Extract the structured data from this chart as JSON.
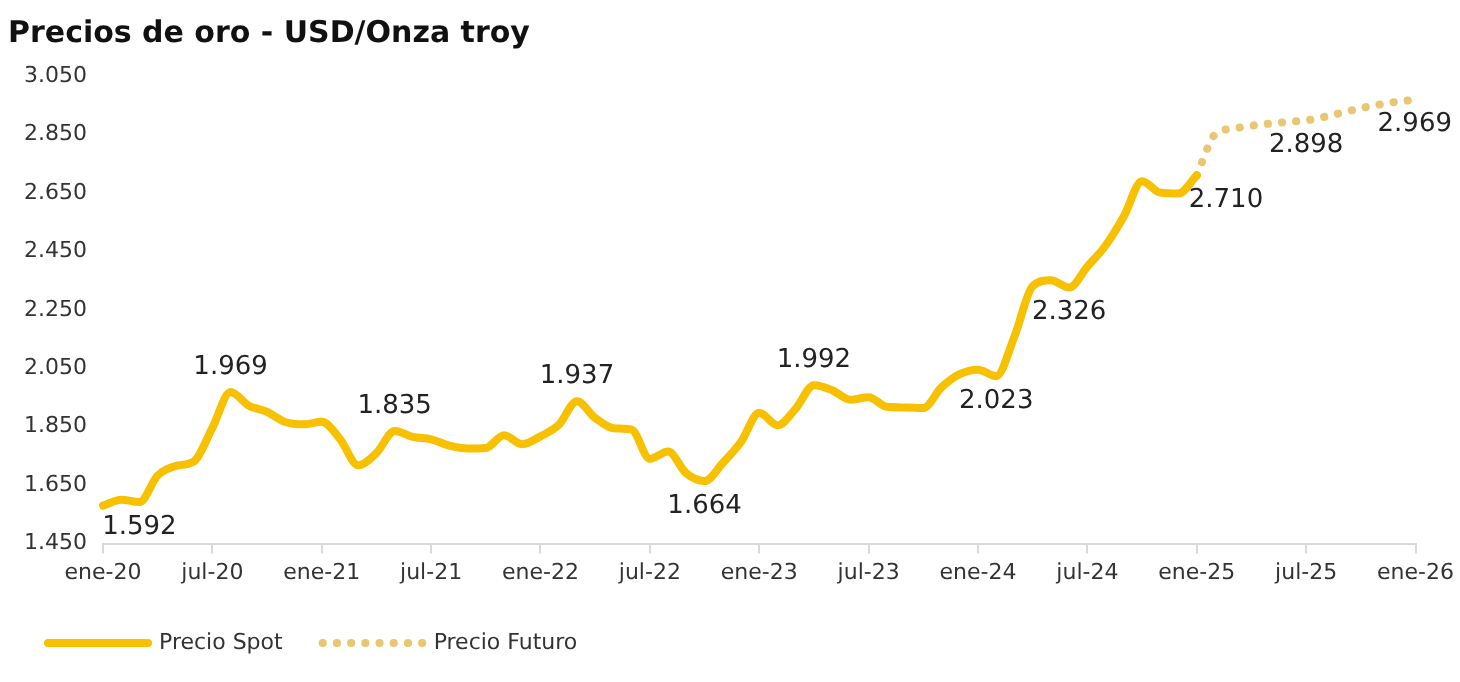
{
  "chart_data": {
    "type": "line",
    "title": "Precios de oro - USD/Onza troy",
    "categories": [
      "ene-20",
      null,
      null,
      null,
      null,
      null,
      "jul-20",
      null,
      null,
      null,
      null,
      null,
      "ene-21",
      null,
      null,
      null,
      null,
      null,
      "jul-21",
      null,
      null,
      null,
      null,
      null,
      "ene-22",
      null,
      null,
      null,
      null,
      null,
      "jul-22",
      null,
      null,
      null,
      null,
      null,
      "ene-23",
      null,
      null,
      null,
      null,
      null,
      "jul-23",
      null,
      null,
      null,
      null,
      null,
      "ene-24",
      null,
      null,
      null,
      null,
      null,
      "jul-24",
      null,
      null,
      null,
      null,
      null,
      "ene-25",
      null,
      null,
      null,
      null,
      null,
      "jul-25",
      null,
      null,
      null,
      null,
      null,
      "ene-26"
    ],
    "ylim": [
      1450,
      3050
    ],
    "yticks": [
      {
        "value": 1450,
        "label": "1.450"
      },
      {
        "value": 1650,
        "label": "1.650"
      },
      {
        "value": 1850,
        "label": "1.850"
      },
      {
        "value": 2050,
        "label": "2.050"
      },
      {
        "value": 2250,
        "label": "2.250"
      },
      {
        "value": 2450,
        "label": "2.450"
      },
      {
        "value": 2650,
        "label": "2.650"
      },
      {
        "value": 2850,
        "label": "2.850"
      },
      {
        "value": 3050,
        "label": "3.050"
      }
    ],
    "grid": false,
    "legend": "bottom",
    "marker": "none",
    "series": [
      {
        "name": "Precio Spot",
        "color": "#f7c000",
        "line_style": "solid",
        "values": [
          1580,
          1600,
          1592,
          1683,
          1716,
          1732,
          1846,
          1969,
          1922,
          1901,
          1866,
          1858,
          1867,
          1808,
          1718,
          1760,
          1835,
          1815,
          1807,
          1785,
          1775,
          1777,
          1821,
          1790,
          1817,
          1856,
          1937,
          1880,
          1845,
          1840,
          1740,
          1765,
          1690,
          1664,
          1726,
          1798,
          1898,
          1855,
          1912,
          1992,
          1975,
          1942,
          1951,
          1918,
          1916,
          1914,
          1985,
          2030,
          2045,
          2023,
          2159,
          2331,
          2351,
          2326,
          2398,
          2470,
          2570,
          2690,
          2651,
          2648,
          2710,
          null,
          null,
          null,
          null,
          null,
          null,
          null,
          null,
          null,
          null,
          null,
          null
        ],
        "value_labels": [
          null,
          null,
          "1.592",
          null,
          null,
          null,
          null,
          "1.969",
          null,
          null,
          null,
          null,
          null,
          null,
          null,
          null,
          "1.835",
          null,
          null,
          null,
          null,
          null,
          null,
          null,
          null,
          null,
          "1.937",
          null,
          null,
          null,
          null,
          null,
          null,
          "1.664",
          null,
          null,
          null,
          null,
          null,
          "1.992",
          null,
          null,
          null,
          null,
          null,
          null,
          null,
          null,
          null,
          "2.023",
          null,
          null,
          null,
          "2.326",
          null,
          null,
          null,
          null,
          null,
          null,
          "2.710",
          null,
          null,
          null,
          null,
          null,
          null,
          null,
          null,
          null,
          null,
          null,
          null
        ]
      },
      {
        "name": "Precio Futuro",
        "color": "#e8c672",
        "line_style": "dotted",
        "values": [
          null,
          null,
          null,
          null,
          null,
          null,
          null,
          null,
          null,
          null,
          null,
          null,
          null,
          null,
          null,
          null,
          null,
          null,
          null,
          null,
          null,
          null,
          null,
          null,
          null,
          null,
          null,
          null,
          null,
          null,
          null,
          null,
          null,
          null,
          null,
          null,
          null,
          null,
          null,
          null,
          null,
          null,
          null,
          null,
          null,
          null,
          null,
          null,
          null,
          null,
          null,
          null,
          null,
          null,
          null,
          null,
          null,
          null,
          null,
          null,
          2710,
          2850,
          2870,
          2880,
          2887,
          2893,
          2898,
          2910,
          2925,
          2940,
          2952,
          2962,
          2969
        ],
        "value_labels": [
          null,
          null,
          null,
          null,
          null,
          null,
          null,
          null,
          null,
          null,
          null,
          null,
          null,
          null,
          null,
          null,
          null,
          null,
          null,
          null,
          null,
          null,
          null,
          null,
          null,
          null,
          null,
          null,
          null,
          null,
          null,
          null,
          null,
          null,
          null,
          null,
          null,
          null,
          null,
          null,
          null,
          null,
          null,
          null,
          null,
          null,
          null,
          null,
          null,
          null,
          null,
          null,
          null,
          null,
          null,
          null,
          null,
          null,
          null,
          null,
          null,
          null,
          null,
          null,
          null,
          null,
          "2.898",
          null,
          null,
          null,
          null,
          null,
          "2.969"
        ]
      }
    ]
  }
}
